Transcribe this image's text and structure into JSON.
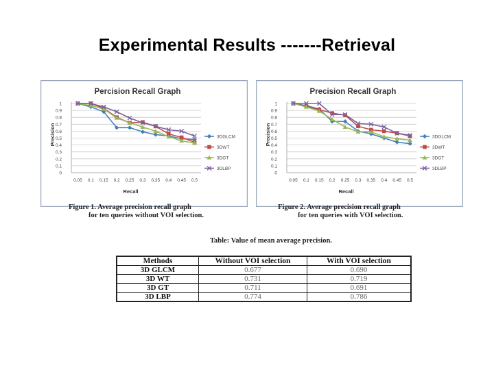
{
  "slide": {
    "title": "Experimental  Results -------Retrieval"
  },
  "chart_data": [
    {
      "type": "line",
      "title": "Percision Recall Graph",
      "xlabel": "Recall",
      "ylabel": "Precision",
      "categories": [
        "0.05",
        "0.1",
        "0.15",
        "0.2",
        "0.25",
        "0.3",
        "0.35",
        "0.4",
        "0.45",
        "0.5"
      ],
      "y_ticks": [
        "0",
        "0.1",
        "0.2",
        "0.3",
        "0.4",
        "0.5",
        "0.6",
        "0.7",
        "0.8",
        "0.9",
        "1"
      ],
      "ylim": [
        0,
        1
      ],
      "grid": true,
      "legend_position": "right",
      "series": [
        {
          "name": "3DGLCM",
          "color": "#4a7ebb",
          "marker": "diamond",
          "values": [
            1,
            0.95,
            0.88,
            0.65,
            0.65,
            0.59,
            0.55,
            0.53,
            0.49,
            0.48
          ]
        },
        {
          "name": "3DWT",
          "color": "#be4b48",
          "marker": "square",
          "values": [
            1,
            1,
            0.93,
            0.8,
            0.72,
            0.73,
            0.67,
            0.56,
            0.51,
            0.44
          ]
        },
        {
          "name": "3DGT",
          "color": "#98b954",
          "marker": "triangle",
          "values": [
            1,
            0.97,
            0.92,
            0.79,
            0.72,
            0.66,
            0.6,
            0.52,
            0.46,
            0.43
          ]
        },
        {
          "name": "3DLBP",
          "color": "#7d60a0",
          "marker": "x",
          "values": [
            1,
            1,
            0.95,
            0.88,
            0.79,
            0.72,
            0.67,
            0.62,
            0.6,
            0.53
          ]
        }
      ]
    },
    {
      "type": "line",
      "title": "Precision Recall Graph",
      "xlabel": "Recall",
      "ylabel": "Precision",
      "categories": [
        "0.05",
        "0.1",
        "0.15",
        "0.2",
        "0.25",
        "0.3",
        "0.35",
        "0.4",
        "0.45",
        "0.5"
      ],
      "y_ticks": [
        "0",
        "0.1",
        "0.2",
        "0.3",
        "0.4",
        "0.5",
        "0.6",
        "0.7",
        "0.8",
        "0.9",
        "1"
      ],
      "ylim": [
        0,
        1
      ],
      "grid": true,
      "legend_position": "right",
      "series": [
        {
          "name": "3DGLCM",
          "color": "#4a7ebb",
          "marker": "diamond",
          "values": [
            1,
            0.97,
            0.92,
            0.74,
            0.74,
            0.6,
            0.56,
            0.5,
            0.44,
            0.42
          ]
        },
        {
          "name": "3DWT",
          "color": "#be4b48",
          "marker": "square",
          "values": [
            1,
            0.96,
            0.91,
            0.86,
            0.83,
            0.67,
            0.62,
            0.6,
            0.57,
            0.53
          ]
        },
        {
          "name": "3DGT",
          "color": "#98b954",
          "marker": "triangle",
          "values": [
            1,
            0.95,
            0.89,
            0.77,
            0.66,
            0.59,
            0.59,
            0.52,
            0.49,
            0.47
          ]
        },
        {
          "name": "3DLBP",
          "color": "#7d60a0",
          "marker": "x",
          "values": [
            1,
            1,
            1,
            0.84,
            0.84,
            0.71,
            0.7,
            0.66,
            0.57,
            0.54
          ]
        }
      ]
    }
  ],
  "figures": [
    {
      "caption_line1": "Figure 1.  Average precision recall graph",
      "caption_line2": "for ten queries without VOI selection."
    },
    {
      "caption_line1": "Figure 2.  Average precision recall graph",
      "caption_line2": "for ten queries with VOI selection."
    }
  ],
  "table": {
    "title": "Table: Value of mean average precision.",
    "headers": [
      "Methods",
      "Without VOI selection",
      "With VOI selection"
    ],
    "rows": [
      [
        "3D GLCM",
        "0.677",
        "0.690"
      ],
      [
        "3D WT",
        "0.731",
        "0.719"
      ],
      [
        "3D GT",
        "0.711",
        "0.691"
      ],
      [
        "3D LBP",
        "0.774",
        "0.786"
      ]
    ]
  }
}
